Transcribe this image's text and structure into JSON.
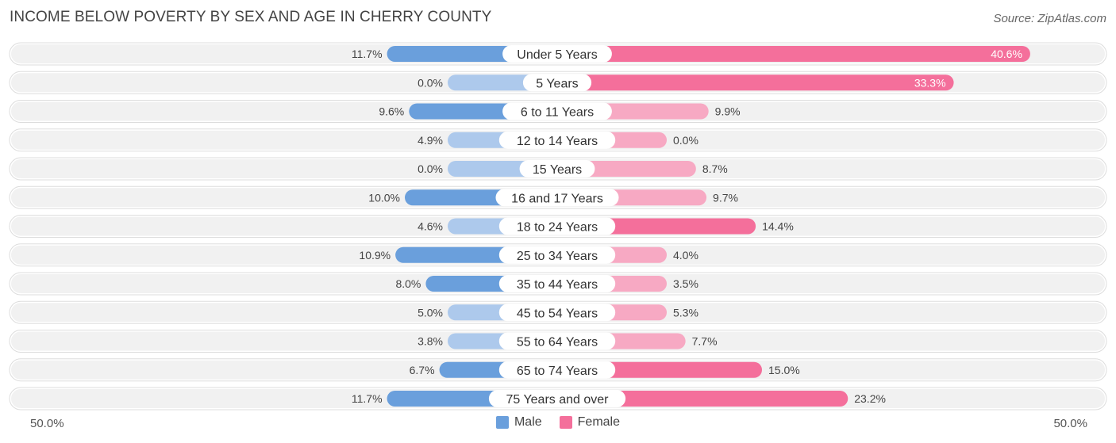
{
  "title": "INCOME BELOW POVERTY BY SEX AND AGE IN CHERRY COUNTY",
  "source": "Source: ZipAtlas.com",
  "axis": {
    "left_label": "50.0%",
    "right_label": "50.0%"
  },
  "legend": {
    "male": "Male",
    "female": "Female"
  },
  "colors": {
    "male_strong": "#6a9fdc",
    "male_light": "#adc9ec",
    "female_strong": "#f46f9b",
    "female_light": "#f7a9c3",
    "row_bg": "#f1f1f1"
  },
  "chart_data": {
    "type": "bar",
    "title": "INCOME BELOW POVERTY BY SEX AND AGE IN CHERRY COUNTY",
    "orientation": "horizontal-diverging",
    "xlim": [
      -50,
      50
    ],
    "categories": [
      "Under 5 Years",
      "5 Years",
      "6 to 11 Years",
      "12 to 14 Years",
      "15 Years",
      "16 and 17 Years",
      "18 to 24 Years",
      "25 to 34 Years",
      "35 to 44 Years",
      "45 to 54 Years",
      "55 to 64 Years",
      "65 to 74 Years",
      "75 Years and over"
    ],
    "series": [
      {
        "name": "Male",
        "values": [
          11.7,
          0.0,
          9.6,
          4.9,
          0.0,
          10.0,
          4.6,
          10.9,
          8.0,
          5.0,
          3.8,
          6.7,
          11.7
        ],
        "labels": [
          "11.7%",
          "0.0%",
          "9.6%",
          "4.9%",
          "0.0%",
          "10.0%",
          "4.6%",
          "10.9%",
          "8.0%",
          "5.0%",
          "3.8%",
          "6.7%",
          "11.7%"
        ]
      },
      {
        "name": "Female",
        "values": [
          40.6,
          33.3,
          9.9,
          0.0,
          8.7,
          9.7,
          14.4,
          4.0,
          3.5,
          5.3,
          7.7,
          15.0,
          23.2
        ],
        "labels": [
          "40.6%",
          "33.3%",
          "9.9%",
          "0.0%",
          "8.7%",
          "9.7%",
          "14.4%",
          "4.0%",
          "3.5%",
          "5.3%",
          "7.7%",
          "15.0%",
          "23.2%"
        ]
      }
    ],
    "legend_position": "bottom-center"
  }
}
